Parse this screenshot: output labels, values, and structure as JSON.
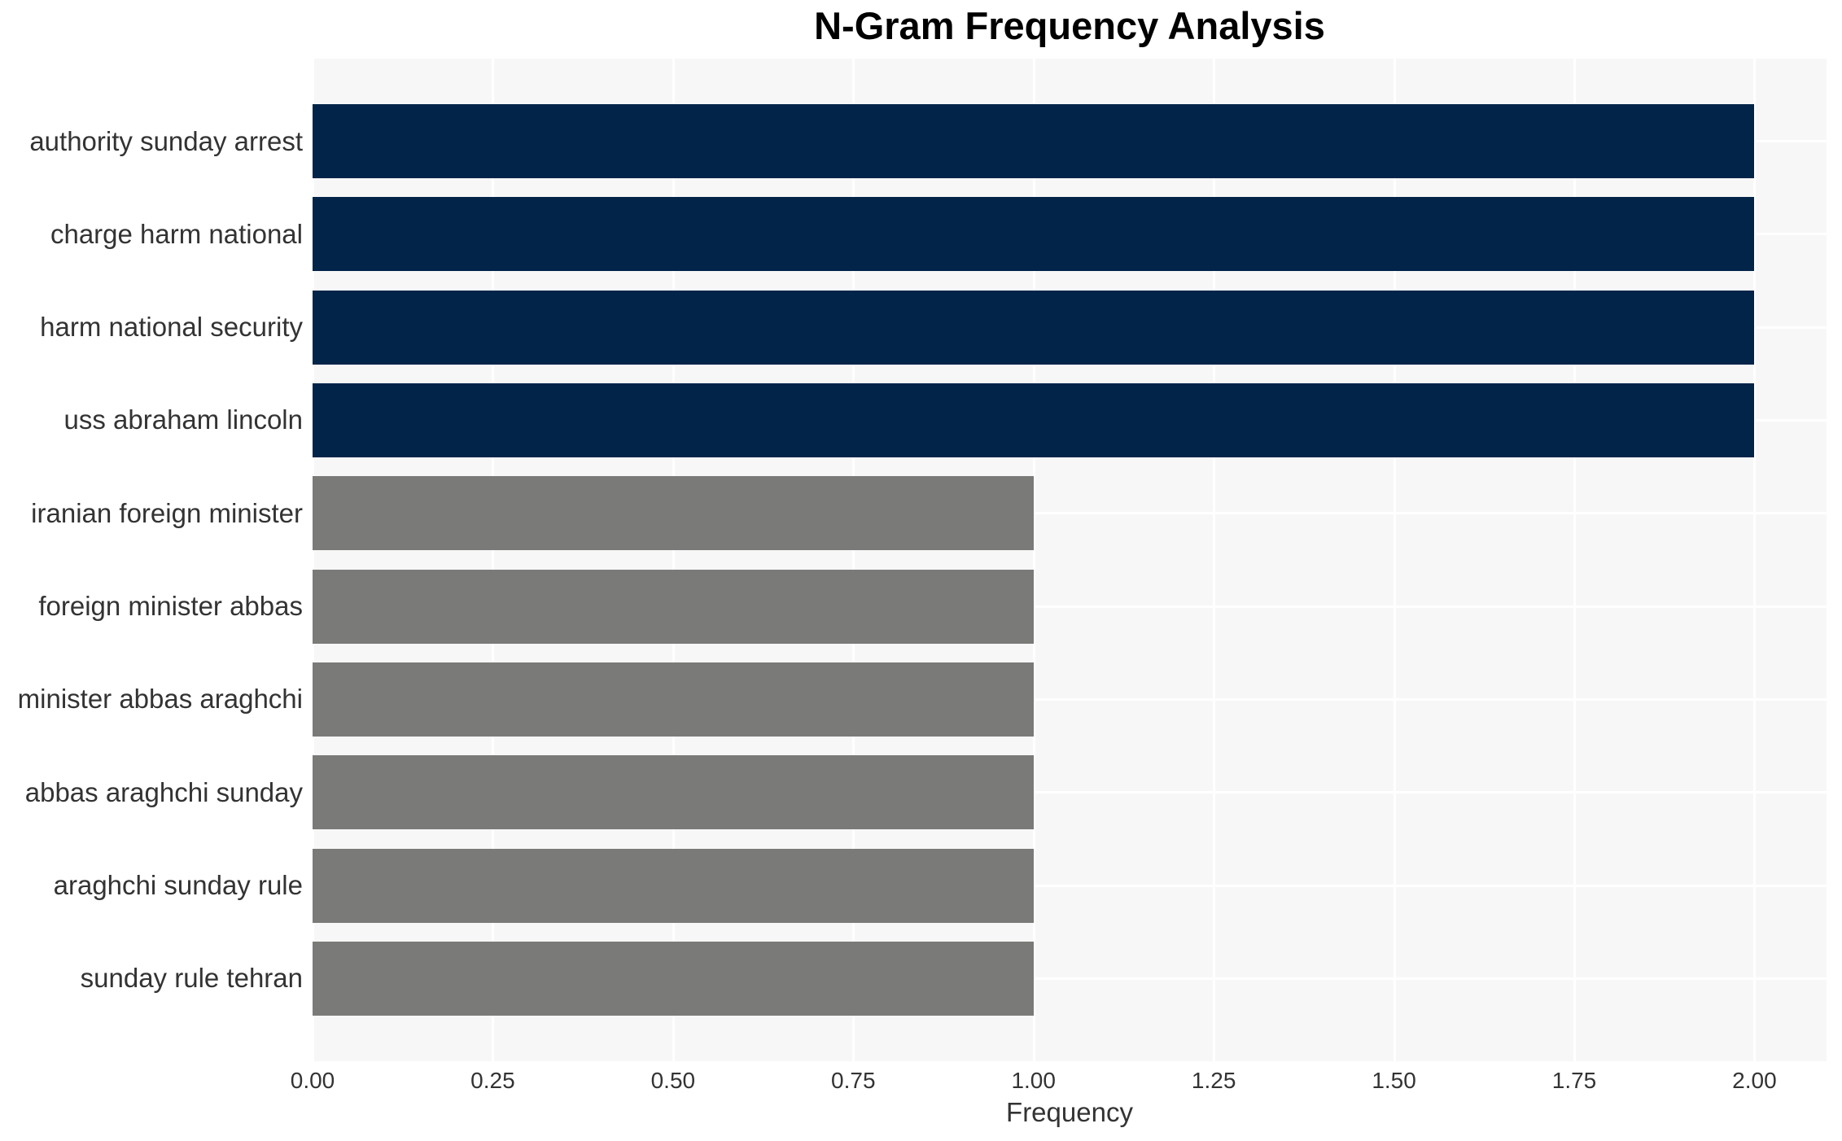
{
  "chart_data": {
    "type": "bar",
    "orientation": "horizontal",
    "title": "N-Gram Frequency Analysis",
    "xlabel": "Frequency",
    "ylabel": "",
    "categories": [
      "authority sunday arrest",
      "charge harm national",
      "harm national security",
      "uss abraham lincoln",
      "iranian foreign minister",
      "foreign minister abbas",
      "minister abbas araghchi",
      "abbas araghchi sunday",
      "araghchi sunday rule",
      "sunday rule tehran"
    ],
    "values": [
      2,
      2,
      2,
      2,
      1,
      1,
      1,
      1,
      1,
      1
    ],
    "bar_colors": [
      "#022449",
      "#022449",
      "#022449",
      "#022449",
      "#7a7a78",
      "#7a7a78",
      "#7a7a78",
      "#7a7a78",
      "#7a7a78",
      "#7a7a78"
    ],
    "xlim": [
      0,
      2.1
    ],
    "xticks": [
      0,
      0.25,
      0.5,
      0.75,
      1,
      1.25,
      1.5,
      1.75,
      2
    ],
    "xtick_labels": [
      "0.00",
      "0.25",
      "0.50",
      "0.75",
      "1.00",
      "1.25",
      "1.50",
      "1.75",
      "2.00"
    ],
    "grid": true,
    "legend": false,
    "colors": {
      "plot_background": "#f7f7f7",
      "gridline": "#ffffff",
      "title_text": "#000000",
      "axis_text": "#333333"
    }
  }
}
